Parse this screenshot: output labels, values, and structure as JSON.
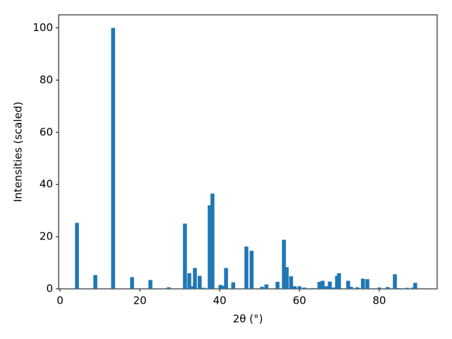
{
  "chart_data": {
    "type": "bar",
    "xlabel": "2θ (°)",
    "ylabel": "Intensities (scaled)",
    "x": [
      4.25,
      8.85,
      13.3,
      18.05,
      22.65,
      27.25,
      31.3,
      32.4,
      33.3,
      33.8,
      35.0,
      35.9,
      37.5,
      38.2,
      40.2,
      40.9,
      41.6,
      43.4,
      46.7,
      48.0,
      50.6,
      51.7,
      54.5,
      56.1,
      56.8,
      57.9,
      58.8,
      60.0,
      61.2,
      63.4,
      65.0,
      65.8,
      66.7,
      67.6,
      68.5,
      69.4,
      69.9,
      72.2,
      72.9,
      74.5,
      75.9,
      77.0,
      80.0,
      82.1,
      83.9,
      85.0,
      86.9,
      88.5,
      89.0
    ],
    "values": [
      25.3,
      5.3,
      100,
      4.5,
      3.4,
      0.6,
      25,
      6,
      1,
      8,
      5,
      0.4,
      32,
      36.5,
      1.5,
      1.2,
      8,
      2.5,
      16.2,
      14.6,
      0.8,
      1.7,
      2.7,
      18.8,
      8.3,
      4.8,
      1,
      1,
      0.5,
      0.3,
      2.7,
      3.1,
      1,
      2.8,
      0.5,
      5,
      6,
      3.1,
      0.8,
      0.6,
      3.9,
      3.7,
      0.5,
      0.7,
      5.6,
      0.3,
      0.4,
      0.5,
      2.3
    ],
    "color": "#1f77b4",
    "xlim": [
      -0.35,
      94.5
    ],
    "xticks": [
      0,
      20,
      40,
      60,
      80
    ],
    "ylim": [
      0,
      105
    ],
    "yticks": [
      0,
      20,
      40,
      60,
      80,
      100
    ]
  }
}
